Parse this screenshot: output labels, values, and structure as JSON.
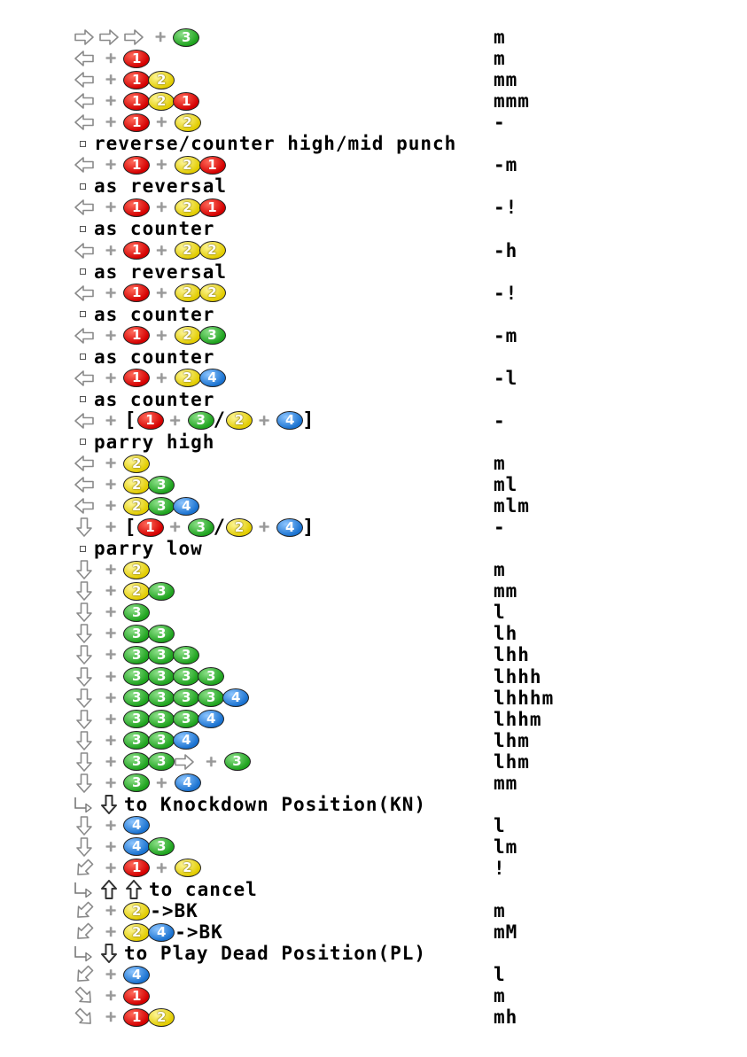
{
  "rows": [
    {
      "kind": "cmd",
      "seq": [
        {
          "a": "f"
        },
        {
          "a": "f"
        },
        {
          "a": "f"
        },
        {
          "p": 1
        },
        {
          "b": 3
        }
      ],
      "hit": "m"
    },
    {
      "kind": "cmd",
      "seq": [
        {
          "a": "b"
        },
        {
          "p": 1
        },
        {
          "b": 1
        }
      ],
      "hit": "m"
    },
    {
      "kind": "cmd",
      "seq": [
        {
          "a": "b"
        },
        {
          "p": 1
        },
        {
          "b": 1
        },
        {
          "b": 2
        }
      ],
      "hit": "mm"
    },
    {
      "kind": "cmd",
      "seq": [
        {
          "a": "b"
        },
        {
          "p": 1
        },
        {
          "b": 1
        },
        {
          "b": 2
        },
        {
          "b": 1
        }
      ],
      "hit": "mmm"
    },
    {
      "kind": "cmd",
      "seq": [
        {
          "a": "b"
        },
        {
          "p": 1
        },
        {
          "b": 1
        },
        {
          "p": 1
        },
        {
          "b": 2
        }
      ],
      "hit": "-"
    },
    {
      "kind": "note",
      "text": "reverse/counter high/mid punch"
    },
    {
      "kind": "cmd",
      "seq": [
        {
          "a": "b"
        },
        {
          "p": 1
        },
        {
          "b": 1
        },
        {
          "p": 1
        },
        {
          "b": 2
        },
        {
          "b": 1
        }
      ],
      "hit": "-m"
    },
    {
      "kind": "note",
      "text": "as reversal"
    },
    {
      "kind": "cmd",
      "seq": [
        {
          "a": "b"
        },
        {
          "p": 1
        },
        {
          "b": 1
        },
        {
          "p": 1
        },
        {
          "b": 2
        },
        {
          "b": 1
        }
      ],
      "hit": "-!"
    },
    {
      "kind": "note",
      "text": "as counter"
    },
    {
      "kind": "cmd",
      "seq": [
        {
          "a": "b"
        },
        {
          "p": 1
        },
        {
          "b": 1
        },
        {
          "p": 1
        },
        {
          "b": 2
        },
        {
          "b": 2
        }
      ],
      "hit": "-h"
    },
    {
      "kind": "note",
      "text": "as reversal"
    },
    {
      "kind": "cmd",
      "seq": [
        {
          "a": "b"
        },
        {
          "p": 1
        },
        {
          "b": 1
        },
        {
          "p": 1
        },
        {
          "b": 2
        },
        {
          "b": 2
        }
      ],
      "hit": "-!"
    },
    {
      "kind": "note",
      "text": "as counter"
    },
    {
      "kind": "cmd",
      "seq": [
        {
          "a": "b"
        },
        {
          "p": 1
        },
        {
          "b": 1
        },
        {
          "p": 1
        },
        {
          "b": 2
        },
        {
          "b": 3
        }
      ],
      "hit": "-m"
    },
    {
      "kind": "note",
      "text": "as counter"
    },
    {
      "kind": "cmd",
      "seq": [
        {
          "a": "b"
        },
        {
          "p": 1
        },
        {
          "b": 1
        },
        {
          "p": 1
        },
        {
          "b": 2
        },
        {
          "b": 4
        }
      ],
      "hit": "-l"
    },
    {
      "kind": "note",
      "text": "as counter"
    },
    {
      "kind": "cmd",
      "seq": [
        {
          "a": "b"
        },
        {
          "p": 1
        },
        {
          "t": "["
        },
        {
          "b": 1
        },
        {
          "p": 1
        },
        {
          "b": 3
        },
        {
          "t": "/"
        },
        {
          "b": 2
        },
        {
          "p": 1
        },
        {
          "b": 4
        },
        {
          "t": "]"
        }
      ],
      "hit": "-"
    },
    {
      "kind": "note",
      "text": "parry high"
    },
    {
      "kind": "cmd",
      "seq": [
        {
          "a": "b"
        },
        {
          "p": 1
        },
        {
          "b": 2
        }
      ],
      "hit": "m"
    },
    {
      "kind": "cmd",
      "seq": [
        {
          "a": "b"
        },
        {
          "p": 1
        },
        {
          "b": 2
        },
        {
          "b": 3
        }
      ],
      "hit": "ml"
    },
    {
      "kind": "cmd",
      "seq": [
        {
          "a": "b"
        },
        {
          "p": 1
        },
        {
          "b": 2
        },
        {
          "b": 3
        },
        {
          "b": 4
        }
      ],
      "hit": "mlm"
    },
    {
      "kind": "cmd",
      "seq": [
        {
          "a": "d"
        },
        {
          "p": 1
        },
        {
          "t": "["
        },
        {
          "b": 1
        },
        {
          "p": 1
        },
        {
          "b": 3
        },
        {
          "t": "/"
        },
        {
          "b": 2
        },
        {
          "p": 1
        },
        {
          "b": 4
        },
        {
          "t": "]"
        }
      ],
      "hit": "-"
    },
    {
      "kind": "note",
      "text": "parry low"
    },
    {
      "kind": "cmd",
      "seq": [
        {
          "a": "d"
        },
        {
          "p": 1
        },
        {
          "b": 2
        }
      ],
      "hit": "m"
    },
    {
      "kind": "cmd",
      "seq": [
        {
          "a": "d"
        },
        {
          "p": 1
        },
        {
          "b": 2
        },
        {
          "b": 3
        }
      ],
      "hit": "mm"
    },
    {
      "kind": "cmd",
      "seq": [
        {
          "a": "d"
        },
        {
          "p": 1
        },
        {
          "b": 3
        }
      ],
      "hit": "l"
    },
    {
      "kind": "cmd",
      "seq": [
        {
          "a": "d"
        },
        {
          "p": 1
        },
        {
          "b": 3
        },
        {
          "b": 3
        }
      ],
      "hit": "lh"
    },
    {
      "kind": "cmd",
      "seq": [
        {
          "a": "d"
        },
        {
          "p": 1
        },
        {
          "b": 3
        },
        {
          "b": 3
        },
        {
          "b": 3
        }
      ],
      "hit": "lhh"
    },
    {
      "kind": "cmd",
      "seq": [
        {
          "a": "d"
        },
        {
          "p": 1
        },
        {
          "b": 3
        },
        {
          "b": 3
        },
        {
          "b": 3
        },
        {
          "b": 3
        }
      ],
      "hit": "lhhh"
    },
    {
      "kind": "cmd",
      "seq": [
        {
          "a": "d"
        },
        {
          "p": 1
        },
        {
          "b": 3
        },
        {
          "b": 3
        },
        {
          "b": 3
        },
        {
          "b": 3
        },
        {
          "b": 4
        }
      ],
      "hit": "lhhhm"
    },
    {
      "kind": "cmd",
      "seq": [
        {
          "a": "d"
        },
        {
          "p": 1
        },
        {
          "b": 3
        },
        {
          "b": 3
        },
        {
          "b": 3
        },
        {
          "b": 4
        }
      ],
      "hit": "lhhm"
    },
    {
      "kind": "cmd",
      "seq": [
        {
          "a": "d"
        },
        {
          "p": 1
        },
        {
          "b": 3
        },
        {
          "b": 3
        },
        {
          "b": 4
        }
      ],
      "hit": "lhm"
    },
    {
      "kind": "cmd",
      "seq": [
        {
          "a": "d"
        },
        {
          "p": 1
        },
        {
          "b": 3
        },
        {
          "b": 3
        },
        {
          "a": "f"
        },
        {
          "p": 1
        },
        {
          "b": 3
        }
      ],
      "hit": "lhm"
    },
    {
      "kind": "cmd",
      "seq": [
        {
          "a": "d"
        },
        {
          "p": 1
        },
        {
          "b": 3
        },
        {
          "p": 1
        },
        {
          "b": 4
        }
      ],
      "hit": "mm"
    },
    {
      "kind": "cmd",
      "seq": [
        {
          "s": 1
        },
        {
          "a": "D"
        },
        {
          "t": "to Knockdown Position(KN)"
        }
      ],
      "hit": ""
    },
    {
      "kind": "cmd",
      "seq": [
        {
          "a": "d"
        },
        {
          "p": 1
        },
        {
          "b": 4
        }
      ],
      "hit": "l"
    },
    {
      "kind": "cmd",
      "seq": [
        {
          "a": "d"
        },
        {
          "p": 1
        },
        {
          "b": 4
        },
        {
          "b": 3
        }
      ],
      "hit": "lm"
    },
    {
      "kind": "cmd",
      "seq": [
        {
          "a": "db"
        },
        {
          "p": 1
        },
        {
          "b": 1
        },
        {
          "p": 1
        },
        {
          "b": 2
        }
      ],
      "hit": "!"
    },
    {
      "kind": "cmd",
      "seq": [
        {
          "s": 1
        },
        {
          "a": "U"
        },
        {
          "a": "U"
        },
        {
          "t": "to cancel"
        }
      ],
      "hit": ""
    },
    {
      "kind": "cmd",
      "seq": [
        {
          "a": "db"
        },
        {
          "p": 1
        },
        {
          "b": 2
        },
        {
          "t": "->BK"
        }
      ],
      "hit": "m"
    },
    {
      "kind": "cmd",
      "seq": [
        {
          "a": "db"
        },
        {
          "p": 1
        },
        {
          "b": 2
        },
        {
          "b": 4
        },
        {
          "t": "->BK"
        }
      ],
      "hit": "mM"
    },
    {
      "kind": "cmd",
      "seq": [
        {
          "s": 1
        },
        {
          "a": "D"
        },
        {
          "t": "to Play Dead Position(PL)"
        }
      ],
      "hit": ""
    },
    {
      "kind": "cmd",
      "seq": [
        {
          "a": "db"
        },
        {
          "p": 1
        },
        {
          "b": 4
        }
      ],
      "hit": "l"
    },
    {
      "kind": "cmd",
      "seq": [
        {
          "a": "df"
        },
        {
          "p": 1
        },
        {
          "b": 1
        }
      ],
      "hit": "m"
    },
    {
      "kind": "cmd",
      "seq": [
        {
          "a": "df"
        },
        {
          "p": 1
        },
        {
          "b": 1
        },
        {
          "b": 2
        }
      ],
      "hit": "mh"
    }
  ]
}
